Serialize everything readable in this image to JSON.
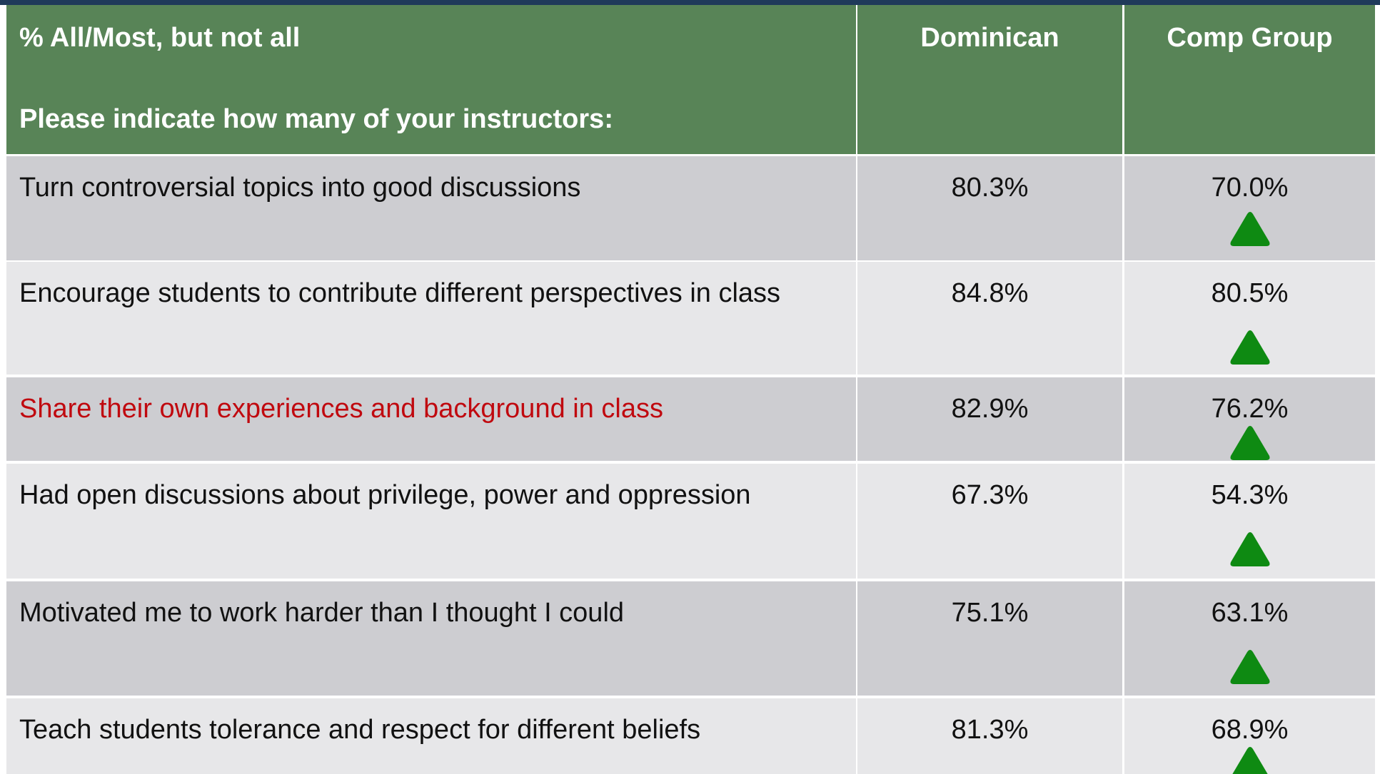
{
  "header": {
    "question_group": "% All/Most, but not all",
    "question": "Please indicate how many of your instructors:",
    "columns": [
      "Dominican",
      "Comp Group"
    ]
  },
  "table": {
    "rows": [
      [
        "Turn controversial topics into good discussions",
        "80.3%",
        "70.0%"
      ],
      [
        "Encourage students to contribute different perspectives in class",
        "84.8%",
        "80.5%"
      ],
      [
        "Share their own experiences and background in class",
        "82.9%",
        "76.2%"
      ],
      [
        "Had open discussions about privilege, power and oppression",
        "67.3%",
        "54.3%"
      ],
      [
        "Motivated me to work harder than I thought I could",
        "75.1%",
        "63.1%"
      ],
      [
        "Teach students tolerance and respect for different beliefs",
        "81.3%",
        "68.9%"
      ]
    ]
  }
}
